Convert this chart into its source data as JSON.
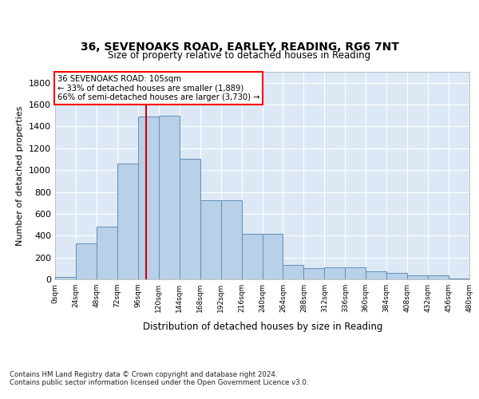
{
  "title_line1": "36, SEVENOAKS ROAD, EARLEY, READING, RG6 7NT",
  "title_line2": "Size of property relative to detached houses in Reading",
  "xlabel": "Distribution of detached houses by size in Reading",
  "ylabel": "Number of detached properties",
  "footnote": "Contains HM Land Registry data © Crown copyright and database right 2024.\nContains public sector information licensed under the Open Government Licence v3.0.",
  "annotation_title": "36 SEVENOAKS ROAD: 105sqm",
  "annotation_line2": "← 33% of detached houses are smaller (1,889)",
  "annotation_line3": "66% of semi-detached houses are larger (3,730) →",
  "bin_width": 24,
  "bin_starts": [
    0,
    24,
    48,
    72,
    96,
    120,
    144,
    168,
    192,
    216,
    240,
    264,
    288,
    312,
    336,
    360,
    384,
    408,
    432,
    456
  ],
  "bar_values": [
    25,
    330,
    480,
    1060,
    1490,
    1500,
    1100,
    720,
    720,
    420,
    420,
    130,
    100,
    110,
    110,
    70,
    55,
    35,
    35,
    5
  ],
  "bar_color": "#b8d0e8",
  "bar_edge_color": "#6090b8",
  "marker_x": 105,
  "marker_color": "#cc0000",
  "ylim": [
    0,
    1900
  ],
  "xlim": [
    0,
    480
  ],
  "background_color": "#dce8f5",
  "yticks": [
    0,
    200,
    400,
    600,
    800,
    1000,
    1200,
    1400,
    1600,
    1800
  ],
  "xtick_labels": [
    "0sqm",
    "24sqm",
    "48sqm",
    "72sqm",
    "96sqm",
    "120sqm",
    "144sqm",
    "168sqm",
    "192sqm",
    "216sqm",
    "240sqm",
    "264sqm",
    "288sqm",
    "312sqm",
    "336sqm",
    "360sqm",
    "384sqm",
    "408sqm",
    "432sqm",
    "456sqm",
    "480sqm"
  ]
}
